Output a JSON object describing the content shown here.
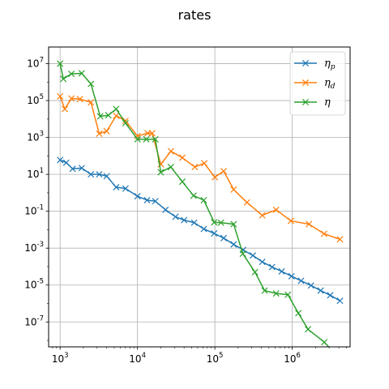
{
  "chart_data": {
    "type": "line",
    "title": "rates",
    "xlabel": "",
    "ylabel": "",
    "xscale": "log",
    "yscale": "log",
    "xlim": [
      710,
      5600000
    ],
    "ylim": [
      4.46e-09,
      80000000
    ],
    "grid": true,
    "legend_position": "upper-right",
    "xtick_labels": [
      {
        "base": "10",
        "exp": "3",
        "value": 1000
      },
      {
        "base": "10",
        "exp": "4",
        "value": 10000
      },
      {
        "base": "10",
        "exp": "5",
        "value": 100000
      },
      {
        "base": "10",
        "exp": "6",
        "value": 1000000
      }
    ],
    "ytick_labels": [
      {
        "base": "10",
        "exp": "-7",
        "value": 1e-07
      },
      {
        "base": "10",
        "exp": "-5",
        "value": 1e-05
      },
      {
        "base": "10",
        "exp": "-3",
        "value": 0.001
      },
      {
        "base": "10",
        "exp": "-1",
        "value": 0.1
      },
      {
        "base": "10",
        "exp": "1",
        "value": 10
      },
      {
        "base": "10",
        "exp": "3",
        "value": 1000
      },
      {
        "base": "10",
        "exp": "5",
        "value": 100000
      },
      {
        "base": "10",
        "exp": "7",
        "value": 10000000
      }
    ],
    "series": [
      {
        "name_main": "η",
        "name_sub": "p",
        "color": "#1f77b4",
        "x": [
          1000,
          1200,
          1450,
          1900,
          2500,
          3200,
          4000,
          5300,
          7000,
          10000,
          13300,
          17000,
          23000,
          31000,
          40000,
          54000,
          72000,
          98000,
          130000,
          175000,
          232000,
          310000,
          410000,
          550000,
          730000,
          980000,
          1300000,
          1750000,
          2330000,
          3100000,
          4140000
        ],
        "y": [
          60,
          43,
          20,
          22,
          10,
          10,
          8,
          2,
          1.7,
          0.65,
          0.4,
          0.35,
          0.12,
          0.05,
          0.033,
          0.024,
          0.011,
          0.0063,
          0.0035,
          0.0016,
          0.0008,
          0.0004,
          0.00018,
          9.5e-05,
          5.5e-05,
          3e-05,
          1.7e-05,
          9.5e-06,
          5e-06,
          2.8e-06,
          1.4e-06
        ]
      },
      {
        "name_main": "η",
        "name_sub": "d",
        "color": "#ff7f0e",
        "x": [
          1000,
          1150,
          1400,
          1800,
          2500,
          3200,
          4000,
          5300,
          7000,
          10000,
          13500,
          15500,
          20000,
          27000,
          38000,
          55000,
          73000,
          100000,
          130000,
          175000,
          260000,
          410000,
          620000,
          960000,
          1650000,
          2580000,
          4140000
        ],
        "y": [
          170000,
          35000,
          130000,
          120000,
          80000,
          1600,
          2200,
          15000,
          8000,
          1200,
          1700,
          1700,
          35,
          180,
          80,
          25,
          40,
          7,
          15,
          1.5,
          0.3,
          0.06,
          0.12,
          0.03,
          0.02,
          0.006,
          0.003
        ]
      },
      {
        "name_main": "η",
        "name_sub": "",
        "color": "#2ca02c",
        "x": [
          1000,
          1100,
          1400,
          1900,
          2500,
          3300,
          4200,
          5300,
          7000,
          10000,
          13000,
          17000,
          20000,
          27000,
          38000,
          53000,
          72000,
          98000,
          120000,
          175000,
          230000,
          330000,
          440000,
          620000,
          880000,
          1200000,
          1600000,
          2600000,
          4140000
        ],
        "y": [
          10000000,
          1500000,
          2800000,
          3000000,
          800000,
          14000,
          16000,
          35000,
          6000,
          800,
          800,
          800,
          13,
          25,
          4,
          0.7,
          0.4,
          0.025,
          0.024,
          0.02,
          0.0005,
          5e-05,
          5e-06,
          3.5e-06,
          3e-06,
          3e-07,
          4e-08,
          8e-09,
          1e-09
        ]
      }
    ]
  }
}
